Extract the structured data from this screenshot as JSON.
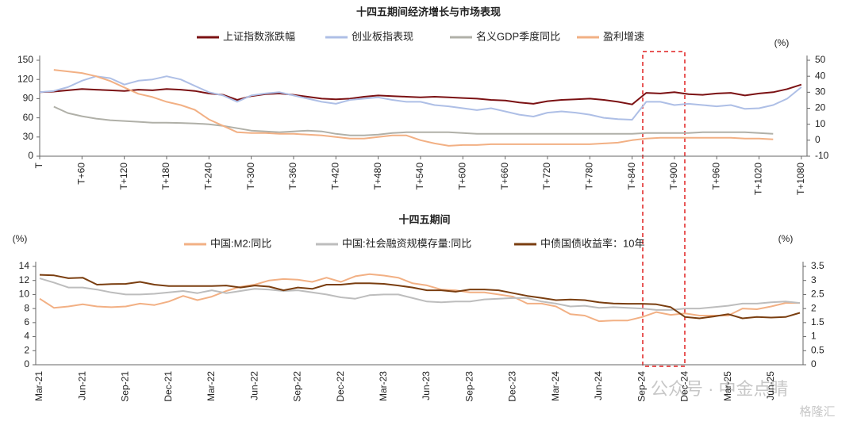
{
  "chart_data": [
    {
      "type": "line",
      "title": "十四五期间经济增长与市场表现",
      "unit_y2": "(%)",
      "x": [
        0,
        20,
        40,
        60,
        80,
        100,
        120,
        140,
        160,
        180,
        200,
        220,
        240,
        260,
        280,
        300,
        320,
        340,
        360,
        380,
        400,
        420,
        440,
        460,
        480,
        500,
        520,
        540,
        560,
        580,
        600,
        620,
        640,
        660,
        680,
        700,
        720,
        740,
        760,
        780,
        800,
        820,
        840,
        860,
        880,
        900,
        920,
        940,
        960,
        980,
        1000,
        1020,
        1040,
        1060,
        1080
      ],
      "xlim": [
        0,
        1088
      ],
      "xticks": [
        {
          "value": 0,
          "label": "T"
        },
        {
          "value": 60,
          "label": "T+60"
        },
        {
          "value": 120,
          "label": "T+120"
        },
        {
          "value": 180,
          "label": "T+180"
        },
        {
          "value": 240,
          "label": "T+240"
        },
        {
          "value": 300,
          "label": "T+300"
        },
        {
          "value": 360,
          "label": "T+360"
        },
        {
          "value": 420,
          "label": "T+420"
        },
        {
          "value": 480,
          "label": "T+480"
        },
        {
          "value": 540,
          "label": "T+540"
        },
        {
          "value": 600,
          "label": "T+600"
        },
        {
          "value": 660,
          "label": "T+660"
        },
        {
          "value": 720,
          "label": "T+720"
        },
        {
          "value": 780,
          "label": "T+780"
        },
        {
          "value": 840,
          "label": "T+840"
        },
        {
          "value": 900,
          "label": "T+900"
        },
        {
          "value": 960,
          "label": "T+960"
        },
        {
          "value": 1020,
          "label": "T+1020"
        },
        {
          "value": 1080,
          "label": "T+1080"
        }
      ],
      "ylim": [
        0,
        150
      ],
      "yticks": [
        0,
        30,
        60,
        90,
        120,
        150
      ],
      "y2lim": [
        -10,
        50
      ],
      "y2ticks": [
        -10,
        0,
        10,
        20,
        30,
        40,
        50
      ],
      "series": [
        {
          "name": "上证指数涨跌幅",
          "color": "#7b1113",
          "values": [
            100,
            101,
            103,
            105,
            104,
            103,
            102,
            104,
            103,
            105,
            104,
            102,
            98,
            96,
            88,
            94,
            97,
            98,
            96,
            93,
            90,
            89,
            90,
            93,
            95,
            94,
            93,
            92,
            93,
            92,
            91,
            90,
            88,
            87,
            84,
            82,
            86,
            88,
            89,
            90,
            88,
            85,
            81,
            99,
            98,
            100,
            97,
            96,
            98,
            99,
            95,
            98,
            100,
            105,
            112
          ]
        },
        {
          "name": "创业板指表现",
          "color": "#aebfe6",
          "values": [
            100,
            102,
            108,
            118,
            125,
            122,
            112,
            118,
            120,
            125,
            120,
            110,
            100,
            95,
            85,
            95,
            98,
            100,
            95,
            90,
            85,
            82,
            88,
            90,
            92,
            88,
            85,
            85,
            80,
            78,
            75,
            72,
            75,
            70,
            65,
            62,
            68,
            70,
            68,
            65,
            60,
            58,
            57,
            85,
            85,
            80,
            82,
            80,
            78,
            80,
            74,
            75,
            80,
            90,
            108
          ]
        },
        {
          "name": "名义GDP季度同比",
          "color": "#b0b0a8",
          "axis": "y2",
          "values": [
            null,
            21,
            17,
            15,
            13.5,
            12.5,
            12,
            11.5,
            11,
            11,
            10.8,
            10.5,
            10,
            9,
            7.5,
            6,
            5.5,
            5,
            5.5,
            6,
            5.5,
            4,
            3,
            3,
            3.5,
            4.5,
            5,
            5,
            5,
            5,
            4.5,
            4,
            4,
            4,
            4,
            4,
            4,
            4,
            4,
            4,
            4,
            4,
            4,
            4.5,
            4.5,
            4.5,
            4.5,
            5,
            5,
            5,
            5,
            4.5,
            4,
            null,
            null
          ]
        },
        {
          "name": "盈利增速",
          "color": "#f2b084",
          "axis": "y2",
          "values": [
            null,
            44,
            43,
            42,
            40,
            37,
            33,
            29,
            27,
            24,
            22,
            19,
            13,
            9,
            5,
            4.5,
            4.5,
            4,
            4,
            3.5,
            3,
            2,
            1,
            1,
            2,
            3,
            3,
            0,
            -2,
            -3.5,
            -3,
            -3,
            -2.5,
            -2.5,
            -2.5,
            -2.5,
            -2.5,
            -2.5,
            -2.5,
            -2.5,
            -2,
            -1.5,
            0,
            1,
            1.5,
            1.5,
            1.5,
            1.5,
            1.5,
            1.5,
            1,
            1,
            0.5,
            null,
            null
          ]
        }
      ]
    },
    {
      "type": "line",
      "title": "十四五期间",
      "unit_y": "(%)",
      "unit_y2": "(%)",
      "categories": [
        "Mar-21",
        null,
        null,
        "Jun-21",
        null,
        null,
        "Sep-21",
        null,
        null,
        "Dec-21",
        null,
        null,
        "Mar-22",
        null,
        null,
        "Jun-22",
        null,
        null,
        "Sep-22",
        null,
        null,
        "Dec-22",
        null,
        null,
        "Mar-23",
        null,
        null,
        "Jun-23",
        null,
        null,
        "Sep-23",
        null,
        null,
        "Dec-23",
        null,
        null,
        "Mar-24",
        null,
        null,
        "Jun-24",
        null,
        null,
        "Sep-24",
        null,
        null,
        "Dec-24",
        null,
        null,
        "Mar-25",
        null,
        null,
        "Jun-25",
        null,
        null
      ],
      "ylim": [
        0,
        14
      ],
      "yticks": [
        0,
        2,
        4,
        6,
        8,
        10,
        12,
        14
      ],
      "y2lim": [
        0,
        3.5
      ],
      "y2ticks": [
        0,
        0.5,
        1,
        1.5,
        2,
        2.5,
        3,
        3.5
      ],
      "series": [
        {
          "name": "中国:M2:同比",
          "color": "#f2b084",
          "values": [
            9.4,
            8.1,
            8.3,
            8.6,
            8.3,
            8.2,
            8.3,
            8.7,
            8.5,
            9.0,
            9.8,
            9.2,
            9.7,
            10.5,
            11.1,
            11.4,
            12.0,
            12.2,
            12.1,
            11.8,
            12.4,
            11.8,
            12.6,
            12.9,
            12.7,
            12.4,
            11.6,
            11.3,
            10.7,
            10.6,
            10.3,
            10.3,
            10.0,
            9.7,
            8.7,
            8.7,
            8.3,
            7.2,
            7.0,
            6.2,
            6.3,
            6.3,
            6.8,
            7.5,
            7.1,
            7.3,
            7.0,
            7.0,
            7.0,
            8.0,
            7.9,
            8.3,
            8.8,
            8.8
          ]
        },
        {
          "name": "中国:社会融资规模存量:同比",
          "color": "#bdbdbd",
          "values": [
            12.3,
            11.7,
            11.0,
            11.0,
            10.7,
            10.3,
            10.0,
            10.0,
            10.1,
            10.3,
            10.5,
            10.2,
            10.6,
            10.2,
            10.5,
            10.8,
            10.7,
            10.5,
            10.6,
            10.3,
            10.0,
            9.6,
            9.4,
            9.9,
            10.0,
            10.0,
            9.5,
            9.0,
            8.9,
            9.0,
            9.0,
            9.3,
            9.4,
            9.5,
            9.5,
            9.0,
            8.7,
            8.3,
            8.4,
            8.1,
            8.2,
            8.1,
            8.0,
            7.8,
            7.8,
            8.0,
            8.0,
            8.2,
            8.4,
            8.7,
            8.7,
            8.9,
            9.0,
            8.8
          ]
        },
        {
          "name": "中债国债收益率：10年",
          "color": "#7a3e10",
          "axis": "y2",
          "values": [
            3.2,
            3.18,
            3.08,
            3.1,
            2.85,
            2.87,
            2.88,
            2.95,
            2.85,
            2.8,
            2.8,
            2.8,
            2.8,
            2.82,
            2.75,
            2.82,
            2.78,
            2.65,
            2.75,
            2.7,
            2.85,
            2.85,
            2.9,
            2.9,
            2.88,
            2.82,
            2.75,
            2.65,
            2.65,
            2.6,
            2.68,
            2.68,
            2.65,
            2.55,
            2.45,
            2.38,
            2.3,
            2.32,
            2.3,
            2.22,
            2.18,
            2.17,
            2.17,
            2.15,
            2.05,
            1.7,
            1.65,
            1.72,
            1.8,
            1.65,
            1.7,
            1.68,
            1.7,
            1.85
          ]
        }
      ]
    }
  ],
  "watermark": "公众号 · 中金点睛",
  "watermark_logo": "格隆汇"
}
